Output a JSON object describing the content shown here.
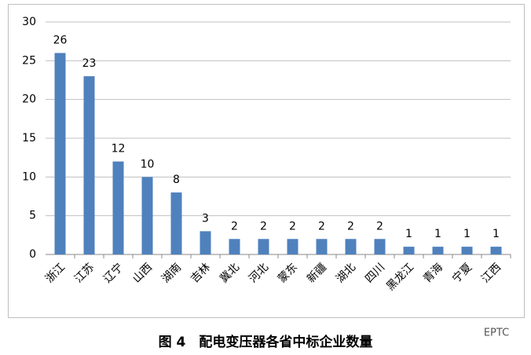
{
  "chart_data": {
    "type": "bar",
    "categories": [
      "浙江",
      "江苏",
      "辽宁",
      "山西",
      "湖南",
      "吉林",
      "冀北",
      "河北",
      "蒙东",
      "新疆",
      "湖北",
      "四川",
      "黑龙江",
      "青海",
      "宁夏",
      "江西"
    ],
    "values": [
      26,
      23,
      12,
      10,
      8,
      3,
      2,
      2,
      2,
      2,
      2,
      2,
      1,
      1,
      1,
      1
    ],
    "color": "#4f81bd",
    "ylim": [
      0,
      30
    ],
    "yticks": [
      0,
      5,
      10,
      15,
      20,
      25,
      30
    ],
    "grid": true,
    "caption": "图 4　配电变压器各省中标企业数量",
    "watermark": "EPTC"
  }
}
